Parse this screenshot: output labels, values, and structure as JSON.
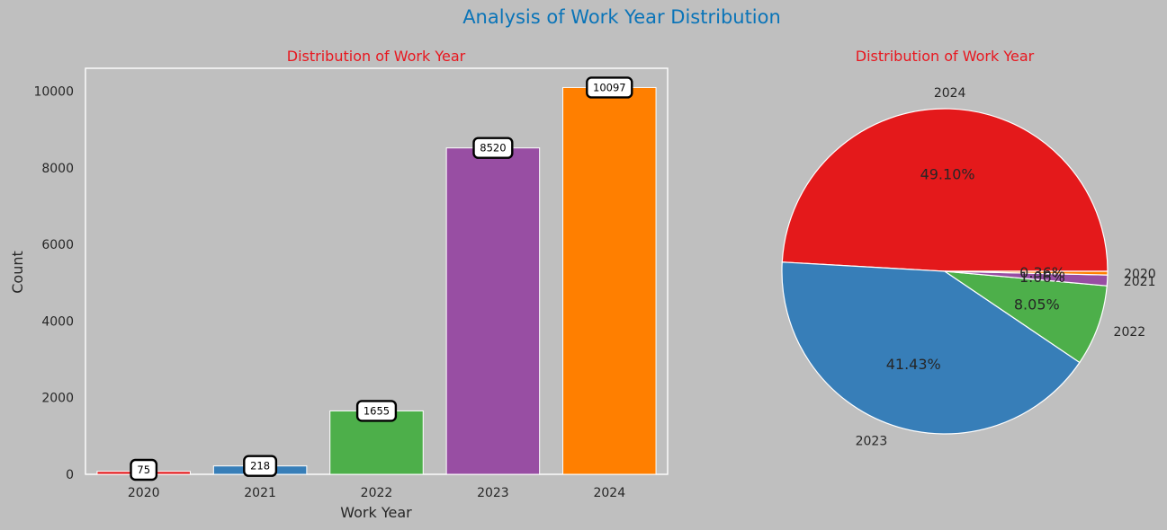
{
  "suptitle": "Analysis of Work Year Distribution",
  "colors": {
    "title": "#0a74b8",
    "subtitle": "#e8171f",
    "text": "#262626",
    "slices": [
      "#e4191b",
      "#377eb8",
      "#4daf4a",
      "#984ea3",
      "#ff7f00"
    ]
  },
  "chart_data": [
    {
      "type": "bar",
      "title": "Distribution of Work Year",
      "xlabel": "Work Year",
      "ylabel": "Count",
      "categories": [
        "2020",
        "2021",
        "2022",
        "2023",
        "2024"
      ],
      "values": [
        75,
        218,
        1655,
        8520,
        10097
      ],
      "data_labels": [
        "75",
        "218",
        "1655",
        "8520",
        "10097"
      ],
      "colors": [
        "#e4191b",
        "#377eb8",
        "#4daf4a",
        "#984ea3",
        "#ff7f00"
      ],
      "ylim": [
        0,
        10600
      ],
      "yticks": [
        0,
        2000,
        4000,
        6000,
        8000,
        10000
      ],
      "ytick_labels": [
        "0",
        "2000",
        "4000",
        "6000",
        "8000",
        "10000"
      ],
      "grid": false
    },
    {
      "type": "pie",
      "title": "Distribution of Work Year",
      "labels": [
        "2024",
        "2023",
        "2022",
        "2021",
        "2020"
      ],
      "values": [
        10097,
        8520,
        1655,
        218,
        75
      ],
      "pct_labels": [
        "49.10%",
        "41.43%",
        "8.05%",
        "1.06%",
        "0.36%"
      ],
      "colors": [
        "#e4191b",
        "#377eb8",
        "#4daf4a",
        "#984ea3",
        "#ff7f00"
      ]
    }
  ]
}
